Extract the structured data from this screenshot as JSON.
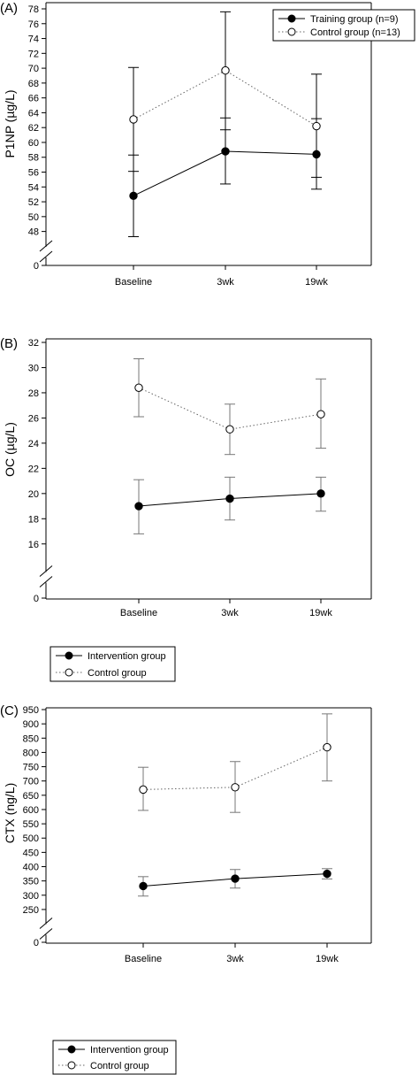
{
  "chart_data": [
    {
      "type": "line",
      "panel_label": "(A)",
      "ylabel": "P1NP (µg/L)",
      "categories": [
        "Baseline",
        "3wk",
        "19wk"
      ],
      "yticks": [
        48,
        50,
        52,
        54,
        56,
        58,
        60,
        62,
        64,
        66,
        68,
        70,
        72,
        74,
        76,
        78
      ],
      "y_floor_tick": 0,
      "ylim": [
        47,
        78
      ],
      "axis_break": true,
      "legend_position": "top-right",
      "series": [
        {
          "name": "Training group (n=9)",
          "style": "solid",
          "marker": "filled-circle",
          "values": [
            52.8,
            58.8,
            58.4
          ],
          "err_low": [
            47.3,
            54.4,
            53.7
          ],
          "err_high": [
            58.3,
            63.3,
            63.2
          ]
        },
        {
          "name": "Control group (n=13)",
          "style": "dotted",
          "marker": "open-circle",
          "values": [
            63.1,
            69.7,
            62.2
          ],
          "err_low": [
            56.1,
            61.7,
            55.3
          ],
          "err_high": [
            70.1,
            77.6,
            69.2
          ]
        }
      ]
    },
    {
      "type": "line",
      "panel_label": "(B)",
      "ylabel": "OC (µg/L)",
      "categories": [
        "Baseline",
        "3wk",
        "19wk"
      ],
      "yticks": [
        16,
        18,
        20,
        22,
        24,
        26,
        28,
        30,
        32
      ],
      "y_floor_tick": 0,
      "ylim": [
        15,
        32
      ],
      "axis_break": true,
      "legend_position": "below-left",
      "series": [
        {
          "name": "Intervention group",
          "style": "solid",
          "marker": "filled-circle",
          "values": [
            19.0,
            19.6,
            20.0
          ],
          "err_low": [
            16.8,
            17.9,
            18.6
          ],
          "err_high": [
            21.1,
            21.3,
            21.3
          ]
        },
        {
          "name": "Control group",
          "style": "dotted",
          "marker": "open-circle",
          "values": [
            28.4,
            25.1,
            26.3
          ],
          "err_low": [
            26.1,
            23.1,
            23.6
          ],
          "err_high": [
            30.7,
            27.1,
            29.1
          ]
        }
      ]
    },
    {
      "type": "line",
      "panel_label": "(C)",
      "ylabel": "CTX (ng/L)",
      "categories": [
        "Baseline",
        "3wk",
        "19wk"
      ],
      "yticks": [
        250,
        300,
        350,
        400,
        450,
        500,
        550,
        600,
        650,
        700,
        750,
        800,
        850,
        900,
        950
      ],
      "y_floor_tick": 0,
      "ylim": [
        225,
        950
      ],
      "axis_break": true,
      "legend_position": "below-left",
      "series": [
        {
          "name": "Intervention group",
          "style": "solid",
          "marker": "filled-circle",
          "values": [
            332,
            358,
            375
          ],
          "err_low": [
            297,
            325,
            357
          ],
          "err_high": [
            365,
            390,
            393
          ]
        },
        {
          "name": "Control group",
          "style": "dotted",
          "marker": "open-circle",
          "values": [
            670,
            678,
            818
          ],
          "err_low": [
            597,
            590,
            700
          ],
          "err_high": [
            748,
            768,
            935
          ]
        }
      ]
    }
  ]
}
